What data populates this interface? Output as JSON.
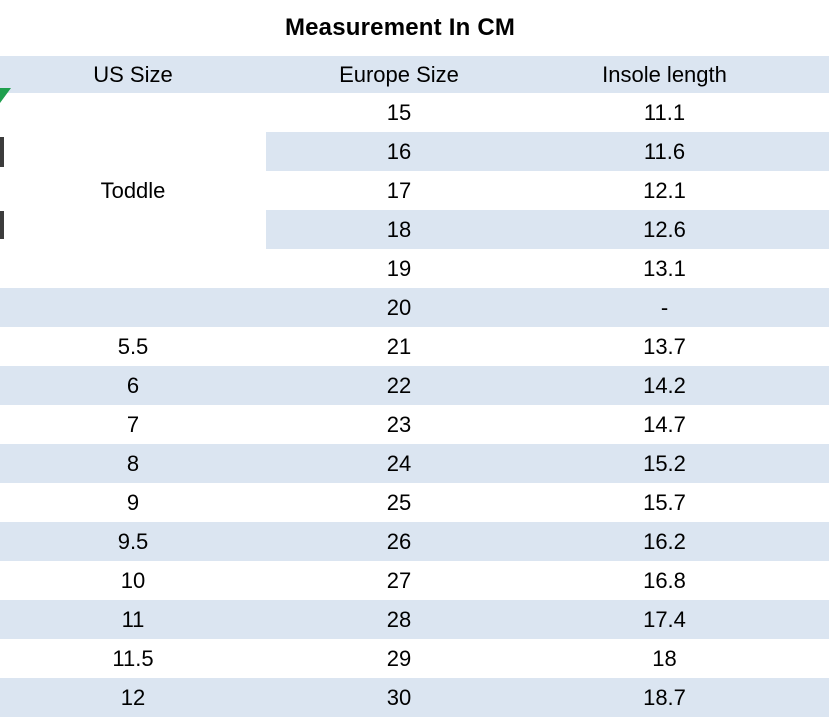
{
  "colors": {
    "stripe": "#dbe5f1",
    "text": "#000000",
    "background": "#ffffff",
    "artifact_green": "#1fa04e"
  },
  "chart_data": {
    "type": "table",
    "title": "Measurement In CM",
    "columns": [
      "US Size",
      "Europe Size",
      "Insole length"
    ],
    "rows": [
      {
        "us": "Toddle",
        "us_span": 5,
        "eu": "15",
        "insole": "11.1",
        "shaded": false
      },
      {
        "eu": "16",
        "insole": "11.6",
        "shaded": true
      },
      {
        "eu": "17",
        "insole": "12.1",
        "shaded": false
      },
      {
        "eu": "18",
        "insole": "12.6",
        "shaded": true
      },
      {
        "eu": "19",
        "insole": "13.1",
        "shaded": false
      },
      {
        "us": "",
        "eu": "20",
        "insole": "-",
        "shaded": true
      },
      {
        "us": "5.5",
        "eu": "21",
        "insole": "13.7",
        "shaded": false
      },
      {
        "us": "6",
        "eu": "22",
        "insole": "14.2",
        "shaded": true
      },
      {
        "us": "7",
        "eu": "23",
        "insole": "14.7",
        "shaded": false
      },
      {
        "us": "8",
        "eu": "24",
        "insole": "15.2",
        "shaded": true
      },
      {
        "us": "9",
        "eu": "25",
        "insole": "15.7",
        "shaded": false
      },
      {
        "us": "9.5",
        "eu": "26",
        "insole": "16.2",
        "shaded": true
      },
      {
        "us": "10",
        "eu": "27",
        "insole": "16.8",
        "shaded": false
      },
      {
        "us": "11",
        "eu": "28",
        "insole": "17.4",
        "shaded": true
      },
      {
        "us": "11.5",
        "eu": "29",
        "insole": "18",
        "shaded": false
      },
      {
        "us": "12",
        "eu": "30",
        "insole": "18.7",
        "shaded": true
      }
    ]
  }
}
